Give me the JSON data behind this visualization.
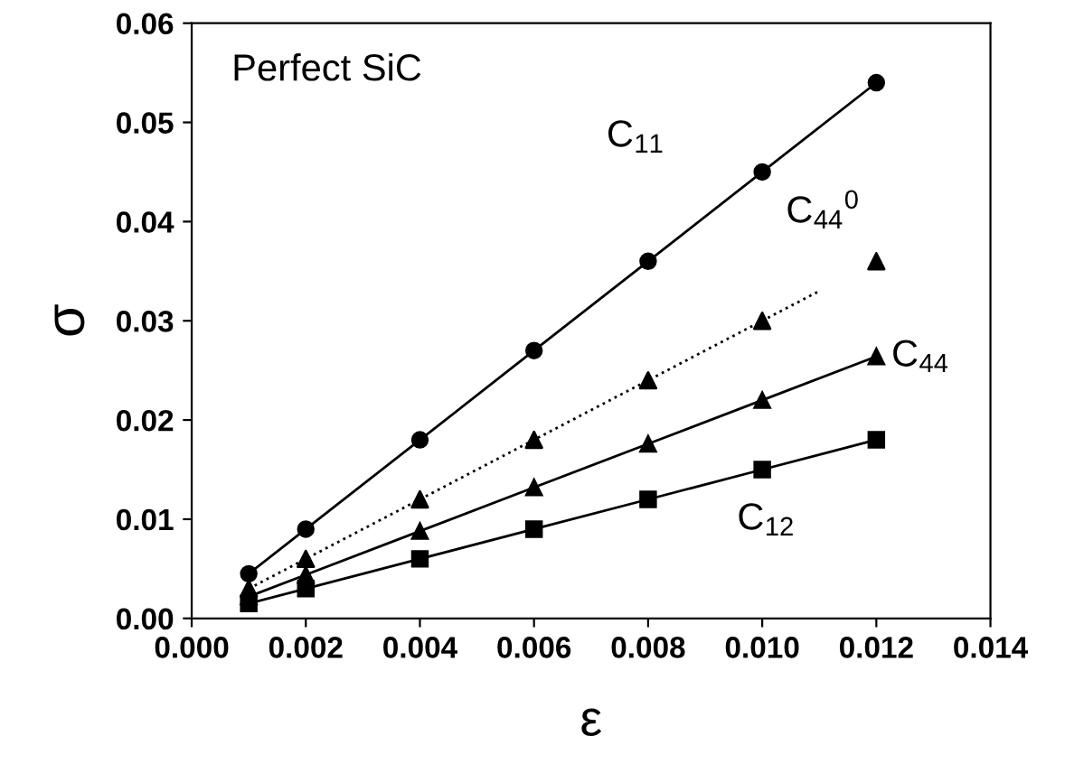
{
  "chart_data": {
    "type": "line",
    "xlabel": "ε",
    "ylabel": "σ",
    "x": [
      0.001,
      0.002,
      0.004,
      0.006,
      0.008,
      0.01,
      0.012
    ],
    "series": [
      {
        "name": "C$_{11}$",
        "color": "#000000",
        "marker": "circle",
        "line_style": "solid",
        "values": [
          0.0045,
          0.009,
          0.018,
          0.027,
          0.036,
          0.045,
          0.054
        ]
      },
      {
        "name": "C$_{44}$$^{0}$",
        "type": "scatter",
        "color": "#000000",
        "marker": "triangle",
        "values": [
          0.003,
          0.006,
          0.012,
          0.018,
          0.024,
          0.03,
          0.036
        ]
      },
      {
        "color": "#000000",
        "marker": "none",
        "line_style": "dotted",
        "x": [
          0.001,
          0.011
        ],
        "values": [
          0.003,
          0.033
        ]
      },
      {
        "name": "C$_{44}$",
        "color": "#000000",
        "marker": "triangle",
        "line_style": "solid",
        "values": [
          0.0022,
          0.0044,
          0.0088,
          0.0132,
          0.0176,
          0.022,
          0.0264
        ]
      },
      {
        "name": "C$_{12}$",
        "color": "#000000",
        "marker": "square",
        "line_style": "solid",
        "values": [
          0.0015,
          0.003,
          0.006,
          0.009,
          0.012,
          0.015,
          0.018
        ]
      }
    ],
    "annotations": [
      "Perfect SiC"
    ],
    "xlim": [
      0.0,
      0.014
    ],
    "xticks": [
      {
        "value": 0.0,
        "label": "0.000"
      },
      {
        "value": 0.002,
        "label": "0.002"
      },
      {
        "value": 0.004,
        "label": "0.004"
      },
      {
        "value": 0.006,
        "label": "0.006"
      },
      {
        "value": 0.008,
        "label": "0.008"
      },
      {
        "value": 0.01,
        "label": "0.010"
      },
      {
        "value": 0.012,
        "label": "0.012"
      },
      {
        "value": 0.014,
        "label": "0.014"
      }
    ],
    "ylim": [
      0.0,
      0.06
    ],
    "yticks": [
      {
        "value": 0.0,
        "label": "0.00"
      },
      {
        "value": 0.01,
        "label": "0.01"
      },
      {
        "value": 0.02,
        "label": "0.02"
      },
      {
        "value": 0.03,
        "label": "0.03"
      },
      {
        "value": 0.04,
        "label": "0.04"
      },
      {
        "value": 0.05,
        "label": "0.05"
      },
      {
        "value": 0.06,
        "label": "0.06"
      }
    ],
    "grid": false,
    "legend": false
  }
}
